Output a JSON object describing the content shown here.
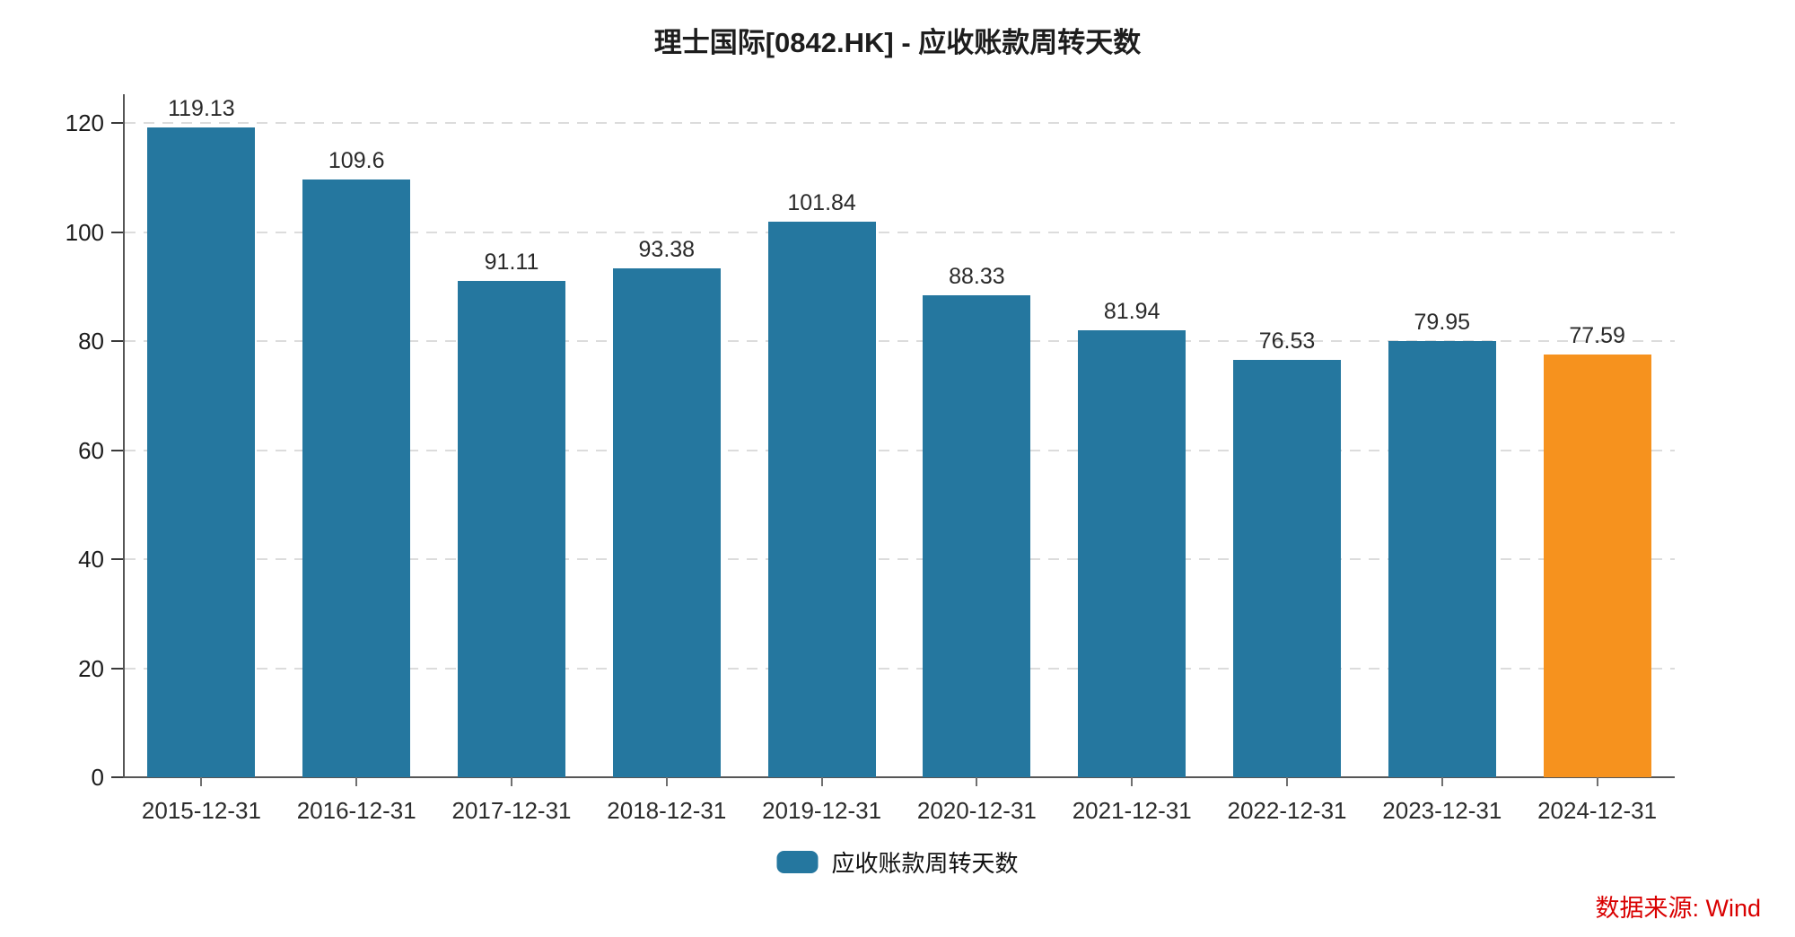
{
  "title": "理士国际[0842.HK] - 应收账款周转天数",
  "legend": {
    "label": "应收账款周转天数"
  },
  "source": {
    "text": "数据来源: Wind",
    "color": "#d90000"
  },
  "chart_data": {
    "type": "bar",
    "title": "理士国际[0842.HK] - 应收账款周转天数",
    "series_name": "应收账款周转天数",
    "categories": [
      "2015-12-31",
      "2016-12-31",
      "2017-12-31",
      "2018-12-31",
      "2019-12-31",
      "2020-12-31",
      "2021-12-31",
      "2022-12-31",
      "2023-12-31",
      "2024-12-31"
    ],
    "values": [
      119.13,
      109.6,
      91.11,
      93.38,
      101.84,
      88.33,
      81.94,
      76.53,
      79.95,
      77.59
    ],
    "value_labels": [
      "119.13",
      "109.6",
      "91.11",
      "93.38",
      "101.84",
      "88.33",
      "81.94",
      "76.53",
      "79.95",
      "77.59"
    ],
    "xlabel": "",
    "ylabel": "",
    "y_ticks": [
      0,
      20,
      40,
      60,
      80,
      100,
      120
    ],
    "ylim": [
      0,
      125
    ],
    "grid": "horizontal-dashed",
    "legend_position": "bottom-center",
    "bar_color": "#25779f",
    "last_bar_color": "#f6921e"
  }
}
